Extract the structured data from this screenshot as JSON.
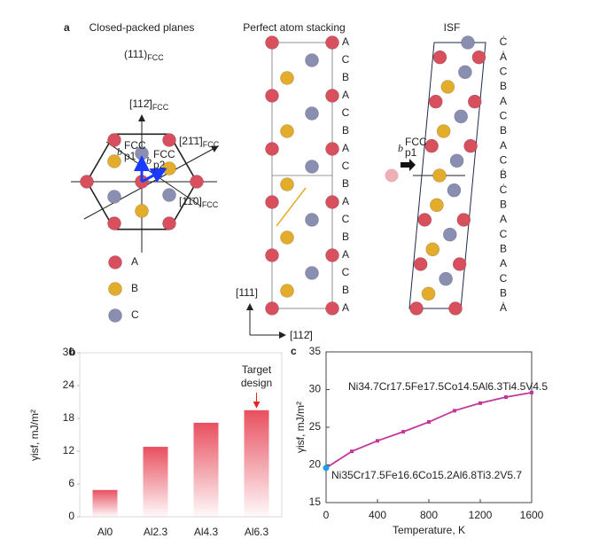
{
  "panel_a": {
    "label": "a",
    "title": "Closed-packed planes",
    "plane": {
      "text": "(111)",
      "sub": "FCC"
    },
    "directions": [
      {
        "text": "[112̄]",
        "sub": "FCC"
      },
      {
        "text": "[21̄1̄]",
        "sub": "FCC"
      },
      {
        "text": "[11̄0]",
        "sub": "FCC"
      }
    ],
    "burgers": [
      {
        "text": "b",
        "sub": "p1",
        "sup": "FCC"
      },
      {
        "text": "b",
        "sub": "p2",
        "sup": "FCC"
      }
    ],
    "legend": [
      {
        "name": "A",
        "color": "#d8505e"
      },
      {
        "name": "B",
        "color": "#e3ad2b"
      },
      {
        "name": "C",
        "color": "#8a8fb2"
      }
    ]
  },
  "panel_stack": {
    "title": "Perfect atom stacking",
    "layers": [
      "A",
      "C",
      "B",
      "A",
      "C",
      "B",
      "A",
      "C",
      "B",
      "A",
      "C",
      "B",
      "A",
      "C",
      "B",
      "A"
    ],
    "axis_vertical": "[111]",
    "axis_horizontal": "[112̄]"
  },
  "panel_isf": {
    "title": "ISF",
    "layers": [
      "Ċ",
      "Ȧ",
      "C",
      "B",
      "A",
      "C",
      "B",
      "A",
      "C",
      "Ḃ",
      "Ċ",
      "B",
      "A",
      "C",
      "B",
      "A",
      "C",
      "B",
      "Ȧ"
    ],
    "burgers": {
      "text": "b",
      "sub": "p1",
      "sup": "FCC"
    },
    "fault_color": "#e8261f"
  },
  "chart_data": [
    {
      "type": "bar",
      "panel": "b",
      "ylabel": "γisf, mJ/m²",
      "categories": [
        "Al0",
        "Al2.3",
        "Al4.3",
        "Al6.3"
      ],
      "values": [
        4.9,
        12.8,
        17.2,
        19.5
      ],
      "color": "#e8505f",
      "annotation": [
        "Target",
        "design"
      ],
      "annotation_color": "#e8261f",
      "ylim": [
        0,
        30
      ],
      "yticks": [
        0,
        6,
        12,
        18,
        24,
        30
      ]
    },
    {
      "type": "line",
      "panel": "c",
      "xlabel": "Temperature, K",
      "ylabel": "γisf, mJ/m²",
      "x": [
        0,
        200,
        400,
        600,
        800,
        1000,
        1200,
        1400,
        1600
      ],
      "series": [
        {
          "name": "Ni34.7Cr17.5Fe17.5Co14.5Al6.3Ti4.5V4.5",
          "color": "#c2379a",
          "values": [
            19.6,
            21.8,
            23.2,
            24.4,
            25.7,
            27.2,
            28.2,
            29.0,
            29.6
          ]
        },
        {
          "name": "Ni35Cr17.5Fe16.6Co15.2Al6.8Ti3.2V5.7",
          "color": "#1ea0e6",
          "values": [
            19.6,
            null,
            null,
            null,
            null,
            null,
            null,
            null,
            null
          ]
        }
      ],
      "xlim": [
        0,
        1600
      ],
      "xticks": [
        0,
        400,
        800,
        1200,
        1600
      ],
      "ylim": [
        15,
        35
      ],
      "yticks": [
        15,
        20,
        25,
        30,
        35
      ]
    }
  ]
}
